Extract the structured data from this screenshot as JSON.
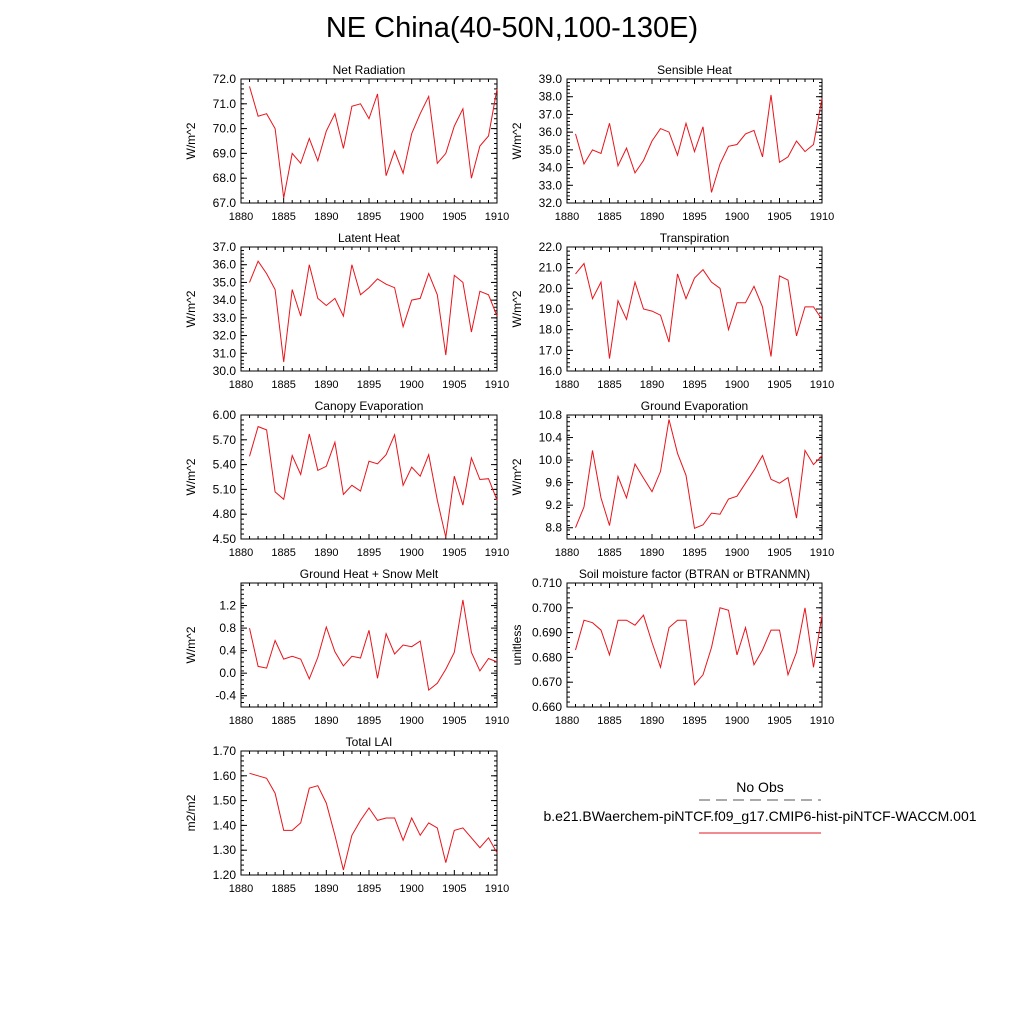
{
  "page_title": "NE China(40-50N,100-130E)",
  "legend": {
    "obs_label": "No Obs",
    "obs_color": "#555555",
    "model_label": "b.e21.BWaerchem-piNTCF.f09_g17.CMIP6-hist-piNTCF-WACCM.001",
    "model_color": "#e8141b"
  },
  "chart_data": [
    {
      "type": "line",
      "title": "Net Radiation",
      "ylabel": "W/m^2",
      "xlim": [
        1880,
        1910
      ],
      "ylim": [
        67.0,
        72.0
      ],
      "xticks": [
        1880,
        1885,
        1890,
        1895,
        1900,
        1905,
        1910
      ],
      "yticks": [
        "67.0",
        "68.0",
        "69.0",
        "70.0",
        "71.0",
        "72.0"
      ],
      "series": [
        {
          "color": "#e8141b",
          "x": [
            1881,
            1882,
            1883,
            1884,
            1885,
            1886,
            1887,
            1888,
            1889,
            1890,
            1891,
            1892,
            1893,
            1894,
            1895,
            1896,
            1897,
            1898,
            1899,
            1900,
            1901,
            1902,
            1903,
            1904,
            1905,
            1906,
            1907,
            1908,
            1909,
            1910
          ],
          "values": [
            71.7,
            70.5,
            70.6,
            70.0,
            67.2,
            69.0,
            68.6,
            69.6,
            68.7,
            69.9,
            70.6,
            69.2,
            70.9,
            71.0,
            70.4,
            71.4,
            68.1,
            69.1,
            68.2,
            69.8,
            70.6,
            71.3,
            68.6,
            69.0,
            70.1,
            70.8,
            68.0,
            69.3,
            69.7,
            71.6
          ]
        }
      ]
    },
    {
      "type": "line",
      "title": "Sensible Heat",
      "ylabel": "W/m^2",
      "xlim": [
        1880,
        1910
      ],
      "ylim": [
        32.0,
        39.0
      ],
      "xticks": [
        1880,
        1885,
        1890,
        1895,
        1900,
        1905,
        1910
      ],
      "yticks": [
        "32.0",
        "33.0",
        "34.0",
        "35.0",
        "36.0",
        "37.0",
        "38.0",
        "39.0"
      ],
      "series": [
        {
          "color": "#e8141b",
          "x": [
            1881,
            1882,
            1883,
            1884,
            1885,
            1886,
            1887,
            1888,
            1889,
            1890,
            1891,
            1892,
            1893,
            1894,
            1895,
            1896,
            1897,
            1898,
            1899,
            1900,
            1901,
            1902,
            1903,
            1904,
            1905,
            1906,
            1907,
            1908,
            1909,
            1910
          ],
          "values": [
            35.9,
            34.2,
            35.0,
            34.8,
            36.5,
            34.1,
            35.1,
            33.7,
            34.4,
            35.5,
            36.2,
            36.0,
            34.7,
            36.5,
            34.9,
            36.3,
            32.6,
            34.2,
            35.2,
            35.3,
            35.9,
            36.1,
            34.6,
            38.1,
            34.3,
            34.6,
            35.5,
            34.9,
            35.3,
            37.9
          ]
        }
      ]
    },
    {
      "type": "line",
      "title": "Latent Heat",
      "ylabel": "W/m^2",
      "xlim": [
        1880,
        1910
      ],
      "ylim": [
        30.0,
        37.0
      ],
      "xticks": [
        1880,
        1885,
        1890,
        1895,
        1900,
        1905,
        1910
      ],
      "yticks": [
        "30.0",
        "31.0",
        "32.0",
        "33.0",
        "34.0",
        "35.0",
        "36.0",
        "37.0"
      ],
      "series": [
        {
          "color": "#e8141b",
          "x": [
            1881,
            1882,
            1883,
            1884,
            1885,
            1886,
            1887,
            1888,
            1889,
            1890,
            1891,
            1892,
            1893,
            1894,
            1895,
            1896,
            1897,
            1898,
            1899,
            1900,
            1901,
            1902,
            1903,
            1904,
            1905,
            1906,
            1907,
            1908,
            1909,
            1910
          ],
          "values": [
            35.0,
            36.2,
            35.5,
            34.6,
            30.5,
            34.6,
            33.1,
            36.0,
            34.1,
            33.7,
            34.1,
            33.1,
            36.0,
            34.3,
            34.7,
            35.2,
            34.9,
            34.7,
            32.5,
            34.0,
            34.1,
            35.5,
            34.3,
            30.9,
            35.4,
            35.0,
            32.2,
            34.5,
            34.3,
            33.1
          ]
        }
      ]
    },
    {
      "type": "line",
      "title": "Transpiration",
      "ylabel": "W/m^2",
      "xlim": [
        1880,
        1910
      ],
      "ylim": [
        16.0,
        22.0
      ],
      "xticks": [
        1880,
        1885,
        1890,
        1895,
        1900,
        1905,
        1910
      ],
      "yticks": [
        "16.0",
        "17.0",
        "18.0",
        "19.0",
        "20.0",
        "21.0",
        "22.0"
      ],
      "series": [
        {
          "color": "#e8141b",
          "x": [
            1881,
            1882,
            1883,
            1884,
            1885,
            1886,
            1887,
            1888,
            1889,
            1890,
            1891,
            1892,
            1893,
            1894,
            1895,
            1896,
            1897,
            1898,
            1899,
            1900,
            1901,
            1902,
            1903,
            1904,
            1905,
            1906,
            1907,
            1908,
            1909,
            1910
          ],
          "values": [
            20.7,
            21.2,
            19.5,
            20.3,
            16.6,
            19.4,
            18.5,
            20.3,
            19.0,
            18.9,
            18.7,
            17.4,
            20.7,
            19.5,
            20.5,
            20.9,
            20.3,
            20.0,
            18.0,
            19.3,
            19.3,
            20.1,
            19.1,
            16.7,
            20.6,
            20.4,
            17.7,
            19.1,
            19.1,
            18.5
          ]
        }
      ]
    },
    {
      "type": "line",
      "title": "Canopy Evaporation",
      "ylabel": "W/m^2",
      "xlim": [
        1880,
        1910
      ],
      "ylim": [
        4.5,
        6.0
      ],
      "xticks": [
        1880,
        1885,
        1890,
        1895,
        1900,
        1905,
        1910
      ],
      "yticks": [
        "4.50",
        "4.80",
        "5.10",
        "5.40",
        "5.70",
        "6.00"
      ],
      "series": [
        {
          "color": "#e8141b",
          "x": [
            1881,
            1882,
            1883,
            1884,
            1885,
            1886,
            1887,
            1888,
            1889,
            1890,
            1891,
            1892,
            1893,
            1894,
            1895,
            1896,
            1897,
            1898,
            1899,
            1900,
            1901,
            1902,
            1903,
            1904,
            1905,
            1906,
            1907,
            1908,
            1909,
            1910
          ],
          "values": [
            5.5,
            5.86,
            5.82,
            5.07,
            4.98,
            5.51,
            5.28,
            5.77,
            5.33,
            5.38,
            5.67,
            5.04,
            5.15,
            5.08,
            5.44,
            5.41,
            5.52,
            5.76,
            5.15,
            5.37,
            5.26,
            5.52,
            4.97,
            4.52,
            5.26,
            4.91,
            5.48,
            5.22,
            5.23,
            4.97
          ]
        }
      ]
    },
    {
      "type": "line",
      "title": "Ground Evaporation",
      "ylabel": "W/m^2",
      "xlim": [
        1880,
        1910
      ],
      "ylim": [
        8.6,
        10.8
      ],
      "xticks": [
        1880,
        1885,
        1890,
        1895,
        1900,
        1905,
        1910
      ],
      "yticks": [
        "8.8",
        "9.2",
        "9.6",
        "10.0",
        "10.4",
        "10.8"
      ],
      "series": [
        {
          "color": "#e8141b",
          "x": [
            1881,
            1882,
            1883,
            1884,
            1885,
            1886,
            1887,
            1888,
            1889,
            1890,
            1891,
            1892,
            1893,
            1894,
            1895,
            1896,
            1897,
            1898,
            1899,
            1900,
            1901,
            1902,
            1903,
            1904,
            1905,
            1906,
            1907,
            1908,
            1909,
            1910
          ],
          "values": [
            8.8,
            9.17,
            10.17,
            9.33,
            8.84,
            9.71,
            9.33,
            9.93,
            9.68,
            9.44,
            9.8,
            10.72,
            10.12,
            9.73,
            8.79,
            8.85,
            9.06,
            9.04,
            9.31,
            9.36,
            9.59,
            9.82,
            10.08,
            9.66,
            9.59,
            9.69,
            8.97,
            10.17,
            9.92,
            10.08
          ]
        }
      ]
    },
    {
      "type": "line",
      "title": "Ground Heat + Snow Melt",
      "ylabel": "W/m^2",
      "xlim": [
        1880,
        1910
      ],
      "ylim": [
        -0.6,
        1.6
      ],
      "xticks": [
        1880,
        1885,
        1890,
        1895,
        1900,
        1905,
        1910
      ],
      "yticks": [
        "-0.4",
        "0.0",
        "0.4",
        "0.8",
        "1.2"
      ],
      "yticks_values": [
        -0.4,
        0.0,
        0.4,
        0.8,
        1.2
      ],
      "series": [
        {
          "color": "#e8141b",
          "x": [
            1881,
            1882,
            1883,
            1884,
            1885,
            1886,
            1887,
            1888,
            1889,
            1890,
            1891,
            1892,
            1893,
            1894,
            1895,
            1896,
            1897,
            1898,
            1899,
            1900,
            1901,
            1902,
            1903,
            1904,
            1905,
            1906,
            1907,
            1908,
            1909,
            1910
          ],
          "values": [
            0.8,
            0.12,
            0.09,
            0.58,
            0.25,
            0.3,
            0.25,
            -0.1,
            0.28,
            0.82,
            0.38,
            0.13,
            0.3,
            0.27,
            0.76,
            -0.09,
            0.7,
            0.34,
            0.5,
            0.47,
            0.57,
            -0.3,
            -0.18,
            0.07,
            0.37,
            1.3,
            0.37,
            0.04,
            0.26,
            0.2
          ]
        }
      ]
    },
    {
      "type": "line",
      "title": "Soil moisture factor (BTRAN or BTRANMN)",
      "ylabel": "unitless",
      "xlim": [
        1880,
        1910
      ],
      "ylim": [
        0.66,
        0.71
      ],
      "xticks": [
        1880,
        1885,
        1890,
        1895,
        1900,
        1905,
        1910
      ],
      "yticks": [
        "0.660",
        "0.670",
        "0.680",
        "0.690",
        "0.700",
        "0.710"
      ],
      "series": [
        {
          "color": "#e8141b",
          "x": [
            1881,
            1882,
            1883,
            1884,
            1885,
            1886,
            1887,
            1888,
            1889,
            1890,
            1891,
            1892,
            1893,
            1894,
            1895,
            1896,
            1897,
            1898,
            1899,
            1900,
            1901,
            1902,
            1903,
            1904,
            1905,
            1906,
            1907,
            1908,
            1909,
            1910
          ],
          "values": [
            0.683,
            0.695,
            0.694,
            0.691,
            0.681,
            0.695,
            0.695,
            0.693,
            0.697,
            0.686,
            0.676,
            0.692,
            0.695,
            0.695,
            0.669,
            0.673,
            0.684,
            0.7,
            0.699,
            0.681,
            0.692,
            0.677,
            0.683,
            0.691,
            0.691,
            0.673,
            0.682,
            0.7,
            0.676,
            0.697
          ]
        }
      ]
    },
    {
      "type": "line",
      "title": "Total LAI",
      "ylabel": "m2/m2",
      "xlim": [
        1880,
        1910
      ],
      "ylim": [
        1.2,
        1.7
      ],
      "xticks": [
        1880,
        1885,
        1890,
        1895,
        1900,
        1905,
        1910
      ],
      "yticks": [
        "1.20",
        "1.30",
        "1.40",
        "1.50",
        "1.60",
        "1.70"
      ],
      "series": [
        {
          "color": "#e8141b",
          "x": [
            1881,
            1882,
            1883,
            1884,
            1885,
            1886,
            1887,
            1888,
            1889,
            1890,
            1891,
            1892,
            1893,
            1894,
            1895,
            1896,
            1897,
            1898,
            1899,
            1900,
            1901,
            1902,
            1903,
            1904,
            1905,
            1906,
            1907,
            1908,
            1909,
            1910
          ],
          "values": [
            1.61,
            1.6,
            1.59,
            1.53,
            1.38,
            1.38,
            1.41,
            1.55,
            1.56,
            1.49,
            1.36,
            1.22,
            1.36,
            1.42,
            1.47,
            1.42,
            1.43,
            1.43,
            1.34,
            1.43,
            1.36,
            1.41,
            1.39,
            1.25,
            1.38,
            1.39,
            1.35,
            1.31,
            1.35,
            1.29
          ]
        }
      ]
    }
  ]
}
